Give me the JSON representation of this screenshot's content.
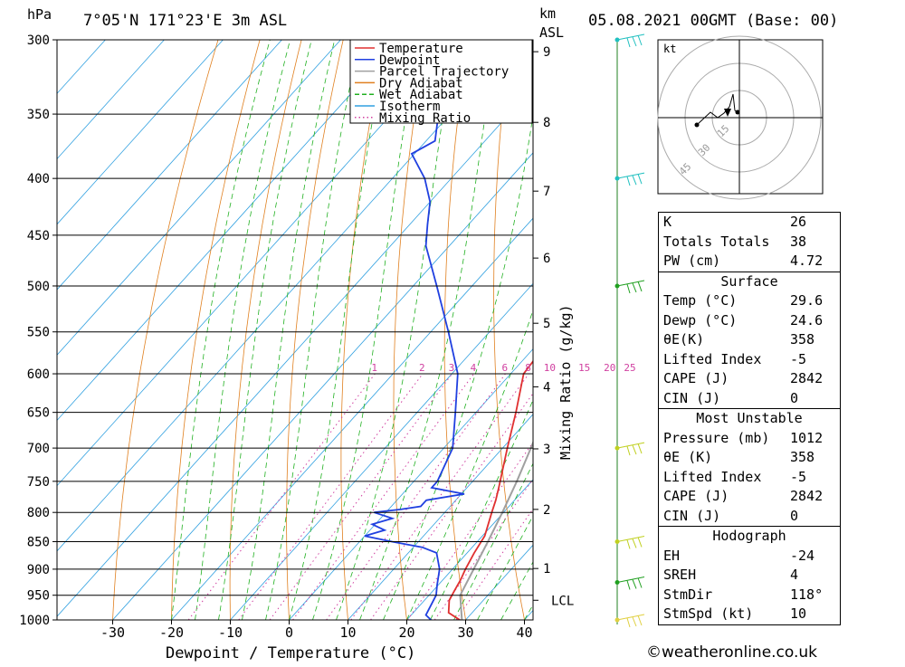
{
  "header": {
    "pressure_unit": "hPa",
    "location": "7°05'N  171°23'E  3m  ASL",
    "km_label": "km",
    "asl_label": "ASL",
    "datetime": "05.08.2021  00GMT  (Base: 00)"
  },
  "chart_data": {
    "type": "line",
    "title": "7°05'N  171°23'E  3m  ASL",
    "xlabel": "Dewpoint / Temperature (°C)",
    "ylabel": "hPa",
    "mixing_ratio_axis_label": "Mixing Ratio (g/kg)",
    "x_ticks": [
      -30,
      -20,
      -10,
      0,
      10,
      20,
      30,
      40
    ],
    "pressure_levels": [
      300,
      350,
      400,
      450,
      500,
      550,
      600,
      650,
      700,
      750,
      800,
      850,
      900,
      950,
      1000
    ],
    "altitude_ticks_km": [
      1,
      2,
      3,
      4,
      5,
      6,
      7,
      8,
      9
    ],
    "lcl_label": "LCL",
    "lcl_pressure": 960,
    "mixing_ratio_labels": [
      "1",
      "2",
      "3",
      "4",
      "6",
      "8",
      "10",
      "15",
      "20",
      "25"
    ],
    "mixing_ratio_values": [
      1,
      2,
      3,
      4,
      6,
      8,
      10,
      15,
      20,
      25
    ],
    "legend_position": "top-right",
    "legend": [
      {
        "label": "Temperature",
        "color": "#e03030",
        "style": "solid"
      },
      {
        "label": "Dewpoint",
        "color": "#2040e0",
        "style": "solid"
      },
      {
        "label": "Parcel Trajectory",
        "color": "#a0a0a0",
        "style": "solid"
      },
      {
        "label": "Dry Adiabat",
        "color": "#e08020",
        "style": "solid"
      },
      {
        "label": "Wet Adiabat",
        "color": "#20b020",
        "style": "dashed"
      },
      {
        "label": "Isotherm",
        "color": "#30a0e0",
        "style": "solid"
      },
      {
        "label": "Mixing Ratio",
        "color": "#d040a0",
        "style": "dotted"
      }
    ],
    "series": [
      {
        "name": "Temperature",
        "color": "#e03030",
        "p": [
          1003,
          985,
          960,
          940,
          920,
          900,
          870,
          840,
          800,
          780,
          760,
          700,
          650,
          600,
          580,
          550,
          500,
          450,
          440,
          420,
          400,
          380,
          365,
          350,
          320,
          300
        ],
        "t": [
          29.6,
          26.0,
          24.2,
          23.6,
          23.0,
          22.2,
          21.2,
          20.4,
          18.0,
          16.8,
          15.4,
          10.8,
          6.8,
          2.2,
          1.8,
          -1.8,
          -7.6,
          -13.8,
          -14.4,
          -16.2,
          -20.4,
          -24.8,
          -27.8,
          -31.0,
          -38.0,
          -42.5
        ]
      },
      {
        "name": "Dewpoint",
        "color": "#2040e0",
        "p": [
          1003,
          990,
          950,
          930,
          900,
          870,
          860,
          850,
          840,
          830,
          820,
          810,
          800,
          795,
          790,
          780,
          770,
          760,
          750,
          700,
          650,
          600,
          550,
          500,
          460,
          440,
          420,
          400,
          380,
          370,
          350,
          330,
          300
        ],
        "t": [
          24.6,
          22.5,
          21.2,
          19.8,
          17.8,
          14.8,
          11.5,
          5.5,
          0.0,
          2.5,
          -0.5,
          2.0,
          -2.0,
          2.0,
          5.0,
          5.0,
          10.5,
          4.0,
          4.0,
          1.5,
          -3.5,
          -9.0,
          -17.0,
          -26.0,
          -34.0,
          -37.0,
          -40.0,
          -44.5,
          -50.5,
          -48.5,
          -52.0,
          -55.0,
          -61.0
        ]
      },
      {
        "name": "Parcel Trajectory",
        "color": "#a0a0a0",
        "p": [
          1003,
          950,
          900,
          850,
          800,
          750,
          700,
          650,
          600,
          550,
          500,
          450,
          400,
          380,
          360,
          300
        ],
        "t": [
          29.6,
          25.3,
          23.6,
          21.8,
          19.8,
          17.5,
          14.8,
          11.8,
          8.3,
          4.3,
          -0.5,
          -6.2,
          -13.2,
          -16.5,
          -20.0,
          -33.0
        ]
      }
    ]
  },
  "hodograph": {
    "unit_label": "kt",
    "ring_labels": [
      "15",
      "30",
      "45"
    ]
  },
  "indices": {
    "k_label": "K",
    "k_value": "26",
    "tt_label": "Totals Totals",
    "tt_value": "38",
    "pw_label": "PW (cm)",
    "pw_value": "4.72",
    "surface_header": "Surface",
    "sfc_temp_label": "Temp (°C)",
    "sfc_temp_value": "29.6",
    "sfc_dewp_label": "Dewp (°C)",
    "sfc_dewp_value": "24.6",
    "sfc_theta_label": "θE(K)",
    "sfc_theta_value": "358",
    "sfc_li_label": "Lifted Index",
    "sfc_li_value": "-5",
    "sfc_cape_label": "CAPE (J)",
    "sfc_cape_value": "2842",
    "sfc_cin_label": "CIN (J)",
    "sfc_cin_value": "0",
    "mu_header": "Most Unstable",
    "mu_pres_label": "Pressure (mb)",
    "mu_pres_value": "1012",
    "mu_theta_label": "θE (K)",
    "mu_theta_value": "358",
    "mu_li_label": "Lifted Index",
    "mu_li_value": "-5",
    "mu_cape_label": "CAPE (J)",
    "mu_cape_value": "2842",
    "mu_cin_label": "CIN (J)",
    "mu_cin_value": "0",
    "hodo_header": "Hodograph",
    "eh_label": "EH",
    "eh_value": "-24",
    "sreh_label": "SREH",
    "sreh_value": "4",
    "stmdir_label": "StmDir",
    "stmdir_value": "118°",
    "stmspd_label": "StmSpd (kt)",
    "stmspd_value": "10"
  },
  "credit": "©weatheronline.co.uk"
}
